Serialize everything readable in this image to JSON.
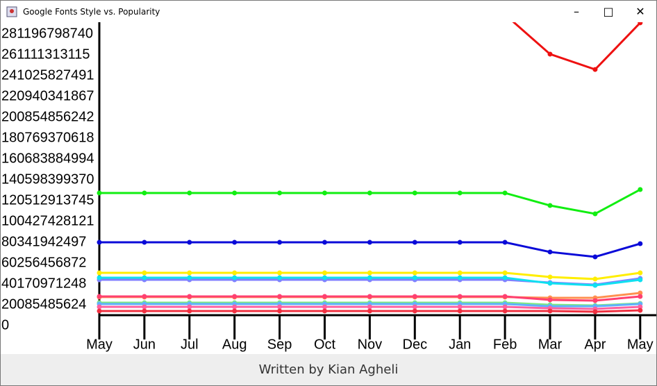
{
  "window": {
    "title": "Google Fonts Style vs. Popularity"
  },
  "footer": "Written by Kian Agheli",
  "chart_data": {
    "type": "line",
    "categories": [
      "May",
      "Jun",
      "Jul",
      "Aug",
      "Sep",
      "Oct",
      "Nov",
      "Dec",
      "Jan",
      "Feb",
      "Mar",
      "Apr",
      "May"
    ],
    "ylim": [
      0,
      291900000000
    ],
    "yticks": [
      0,
      20085485624,
      40170971248,
      60256456872,
      80341942497,
      100427428121,
      120512913745,
      140598399370,
      160683884994,
      180769370618,
      200854856242,
      220940341867,
      241025827491,
      261111313115,
      281196798740
    ],
    "series": [
      {
        "color": "#ee1111",
        "values": [
          300000000000,
          300000000000,
          300000000000,
          300000000000,
          300000000000,
          300000000000,
          300000000000,
          300000000000,
          300000000000,
          300000000000,
          261800000000,
          247000000000,
          292000000000
        ]
      },
      {
        "color": "#11ee11",
        "values": [
          127900000000,
          127900000000,
          127900000000,
          127900000000,
          127900000000,
          127900000000,
          127900000000,
          127900000000,
          127900000000,
          127900000000,
          115800000000,
          107800000000,
          131200000000
        ]
      },
      {
        "color": "#0a0ad8",
        "values": [
          80300000000,
          80300000000,
          80300000000,
          80300000000,
          80300000000,
          80300000000,
          80300000000,
          80300000000,
          80300000000,
          80300000000,
          71000000000,
          66300000000,
          79000000000
        ]
      },
      {
        "color": "#ffee00",
        "values": [
          50900000000,
          50900000000,
          50900000000,
          50900000000,
          50900000000,
          50900000000,
          50900000000,
          50900000000,
          50900000000,
          50900000000,
          46900000000,
          44900000000,
          50900000000
        ]
      },
      {
        "color": "#8080ff",
        "values": [
          44200000000,
          44200000000,
          44200000000,
          44200000000,
          44200000000,
          44200000000,
          44200000000,
          44200000000,
          44200000000,
          44200000000,
          41500000000,
          39500000000,
          45500000000
        ]
      },
      {
        "color": "#10e0f0",
        "values": [
          46200000000,
          46200000000,
          46200000000,
          46200000000,
          46200000000,
          46200000000,
          46200000000,
          46200000000,
          46200000000,
          46200000000,
          40800000000,
          38800000000,
          44200000000
        ]
      },
      {
        "color": "#ff9050",
        "values": [
          27500000000,
          27500000000,
          27500000000,
          27500000000,
          27500000000,
          27500000000,
          27500000000,
          27500000000,
          27500000000,
          27500000000,
          26800000000,
          26800000000,
          31500000000
        ]
      },
      {
        "color": "#ff4070",
        "values": [
          28100000000,
          28100000000,
          28100000000,
          28100000000,
          28100000000,
          28100000000,
          28100000000,
          28100000000,
          28100000000,
          28100000000,
          24800000000,
          24100000000,
          28100000000
        ]
      },
      {
        "color": "#80e880",
        "values": [
          22100000000,
          22100000000,
          22100000000,
          22100000000,
          22100000000,
          22100000000,
          22100000000,
          22100000000,
          22100000000,
          22100000000,
          20100000000,
          19400000000,
          21400000000
        ]
      },
      {
        "color": "#60b0ff",
        "values": [
          20800000000,
          20800000000,
          20800000000,
          20800000000,
          20800000000,
          20800000000,
          20800000000,
          20800000000,
          20800000000,
          20800000000,
          18700000000,
          18700000000,
          20800000000
        ]
      },
      {
        "color": "#ff60a0",
        "values": [
          18100000000,
          18100000000,
          18100000000,
          18100000000,
          18100000000,
          18100000000,
          18100000000,
          18100000000,
          18100000000,
          18100000000,
          16700000000,
          16100000000,
          18100000000
        ]
      },
      {
        "color": "#f03040",
        "values": [
          14100000000,
          14100000000,
          14100000000,
          14100000000,
          14100000000,
          14100000000,
          14100000000,
          14100000000,
          14100000000,
          14100000000,
          14100000000,
          13400000000,
          14700000000
        ]
      }
    ]
  }
}
